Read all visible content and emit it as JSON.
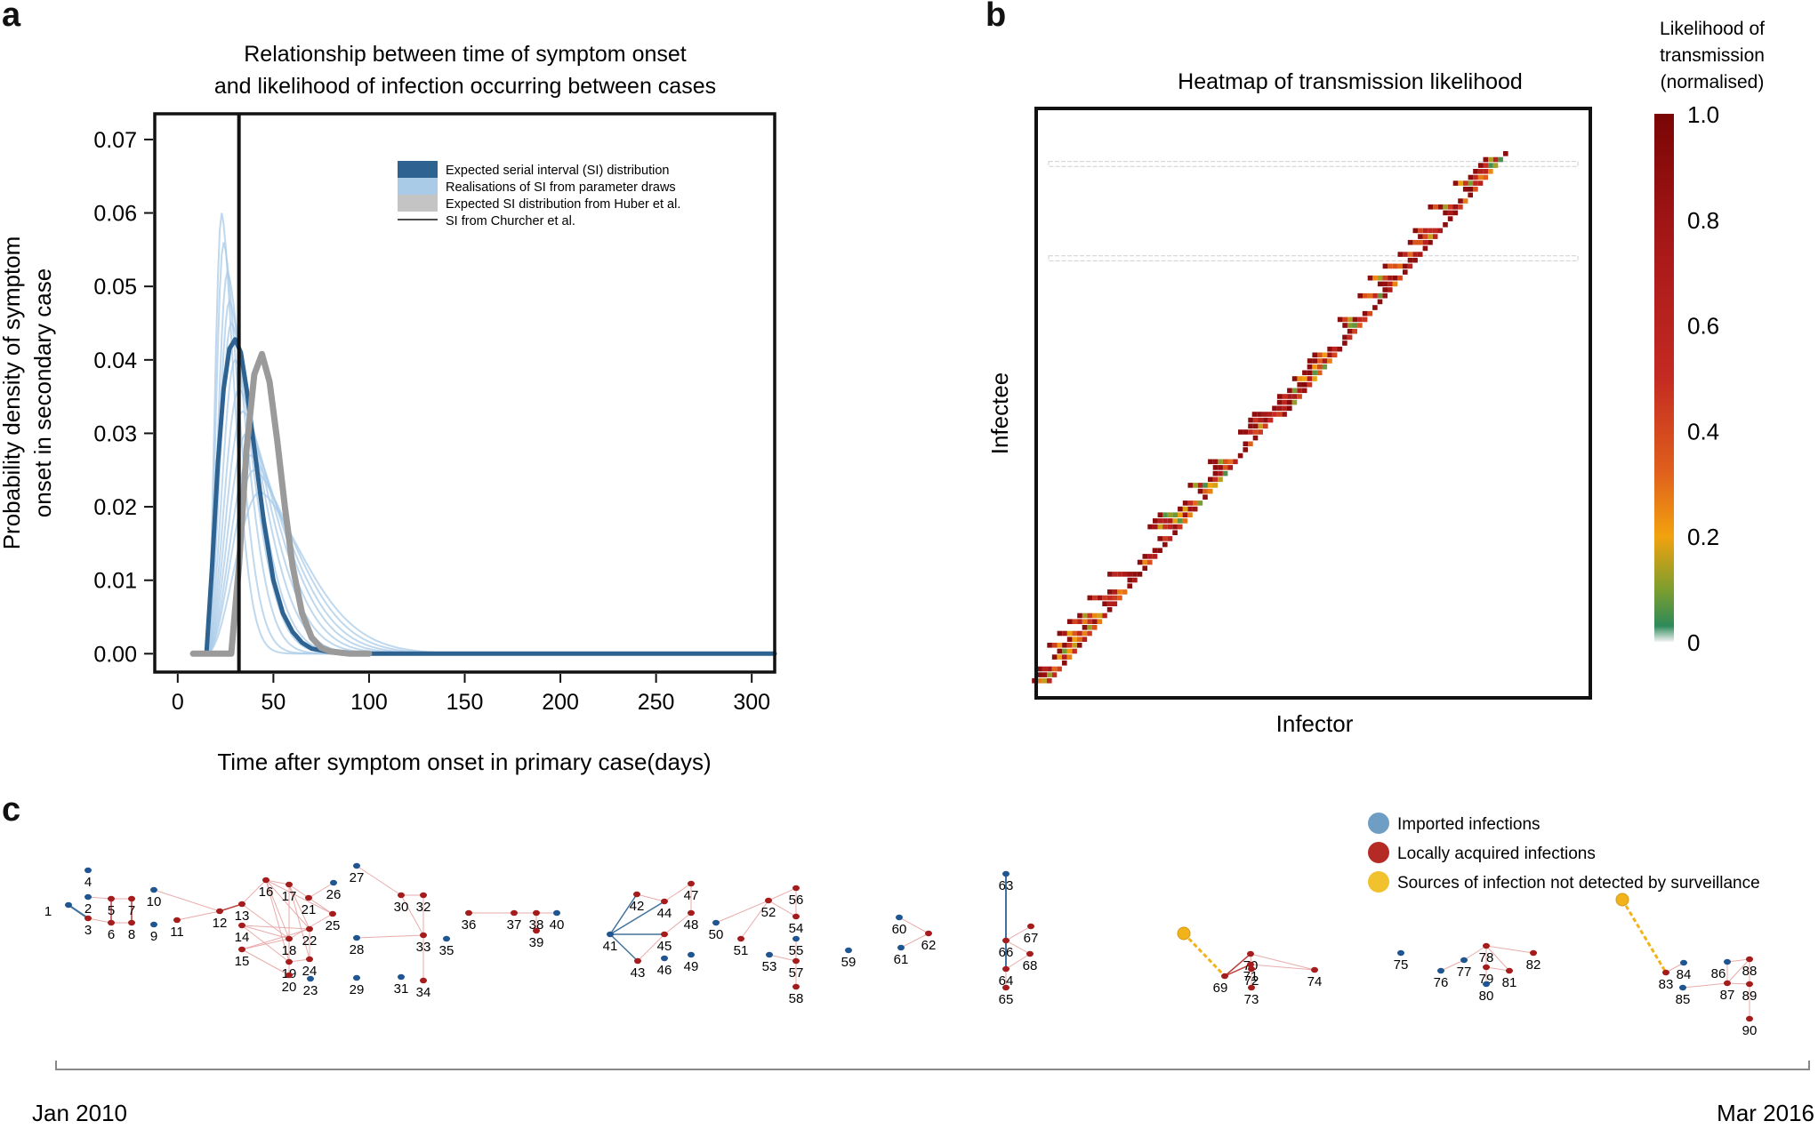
{
  "panels": {
    "a": "a",
    "b": "b",
    "c": "c"
  },
  "chart_data": [
    {
      "type": "line",
      "title_line1": "Relationship between time of symptom onset",
      "title_line2": "and likelihood of infection occurring between cases",
      "xlabel": "Time after symptom onset in primary case(days)",
      "ylabel_line1": "Probability density of symptom",
      "ylabel_line2": "onset in secondary case",
      "xlim": [
        -12,
        312
      ],
      "ylim": [
        -0.0025,
        0.0735
      ],
      "xticks": [
        0,
        50,
        100,
        150,
        200,
        250,
        300
      ],
      "yticks": [
        0.0,
        0.01,
        0.02,
        0.03,
        0.04,
        0.05,
        0.06,
        0.07
      ],
      "ytick_labels": [
        "0.00",
        "0.01",
        "0.02",
        "0.03",
        "0.04",
        "0.05",
        "0.06",
        "0.07"
      ],
      "vline_x": 32,
      "legend": [
        {
          "label": "Expected serial interval (SI) distribution",
          "color": "#2e6391",
          "kind": "patch"
        },
        {
          "label": "Realisations of SI from parameter draws",
          "color": "#a9cbe8",
          "kind": "patch"
        },
        {
          "label": "Expected SI distribution from Huber et al.",
          "color": "#c4c4c4",
          "kind": "patch"
        },
        {
          "label": "SI from Churcher et al.",
          "color": "#111111",
          "kind": "line"
        }
      ],
      "series": [
        {
          "name": "Expected serial interval (SI) distribution",
          "color": "#2e6391",
          "x": [
            15,
            18,
            21,
            24,
            27,
            30,
            33,
            36,
            40,
            45,
            50,
            55,
            60,
            65,
            70,
            80,
            90,
            100,
            312
          ],
          "y": [
            0.0,
            0.012,
            0.026,
            0.036,
            0.0415,
            0.0428,
            0.041,
            0.036,
            0.028,
            0.018,
            0.01,
            0.0055,
            0.003,
            0.0015,
            0.0007,
            0.0002,
            0.0,
            0.0,
            0.0
          ]
        },
        {
          "name": "Expected SI distribution from Huber et al.",
          "color": "#9a9a9a",
          "x": [
            8,
            28,
            32,
            36,
            40,
            44,
            48,
            52,
            56,
            60,
            65,
            70,
            75,
            80,
            90,
            100
          ],
          "y": [
            0.0,
            0.0,
            0.012,
            0.028,
            0.038,
            0.0408,
            0.037,
            0.029,
            0.02,
            0.012,
            0.0055,
            0.0022,
            0.0008,
            0.0003,
            0.0,
            0.0
          ]
        }
      ],
      "realisations": [
        {
          "peak_x": 23,
          "peak_y": 0.06
        },
        {
          "peak_x": 24,
          "peak_y": 0.056
        },
        {
          "peak_x": 26,
          "peak_y": 0.052
        },
        {
          "peak_x": 27,
          "peak_y": 0.048
        },
        {
          "peak_x": 28,
          "peak_y": 0.045
        },
        {
          "peak_x": 30,
          "peak_y": 0.04
        },
        {
          "peak_x": 32,
          "peak_y": 0.036
        },
        {
          "peak_x": 34,
          "peak_y": 0.033
        },
        {
          "peak_x": 36,
          "peak_y": 0.03
        },
        {
          "peak_x": 38,
          "peak_y": 0.027
        },
        {
          "peak_x": 40,
          "peak_y": 0.025
        },
        {
          "peak_x": 43,
          "peak_y": 0.022
        }
      ]
    },
    {
      "type": "heatmap",
      "title": "Heatmap of transmission likelihood",
      "xlabel": "Infector",
      "ylabel": "Infectee",
      "colorbar_title_line1": "Likelihood of",
      "colorbar_title_line2": "transmission",
      "colorbar_title_line3": "(normalised)",
      "colorbar_range": [
        0,
        1
      ],
      "colorbar_ticks": [
        1.0,
        0.8,
        0.6,
        0.4,
        0.2,
        0
      ],
      "colorbar_tick_labels": [
        "1.0",
        "0.8",
        "0.6",
        "0.4",
        "0.2",
        "0"
      ],
      "n_cases": 90
    },
    {
      "type": "network",
      "time_start_label": "Jan 2010",
      "time_end_label": "Mar 2016",
      "legend": [
        {
          "label": "Imported infections",
          "color": "#6f9ec5"
        },
        {
          "label": "Locally acquired infections",
          "color": "#b52a25"
        },
        {
          "label": "Sources of infection not detected by surveillance",
          "color": "#f2c12e"
        }
      ],
      "node_colors": {
        "imported": "#1f5591",
        "local": "#a51c1c",
        "undetected": "#f2b31a"
      },
      "imported_nodes": [
        "1",
        "2",
        "4",
        "9",
        "10",
        "23",
        "26",
        "27",
        "28",
        "29",
        "31",
        "35",
        "40",
        "41",
        "46",
        "49",
        "50",
        "53",
        "55",
        "59",
        "60",
        "61",
        "63",
        "75",
        "76",
        "77",
        "80",
        "84",
        "85",
        "86"
      ]
    }
  ]
}
